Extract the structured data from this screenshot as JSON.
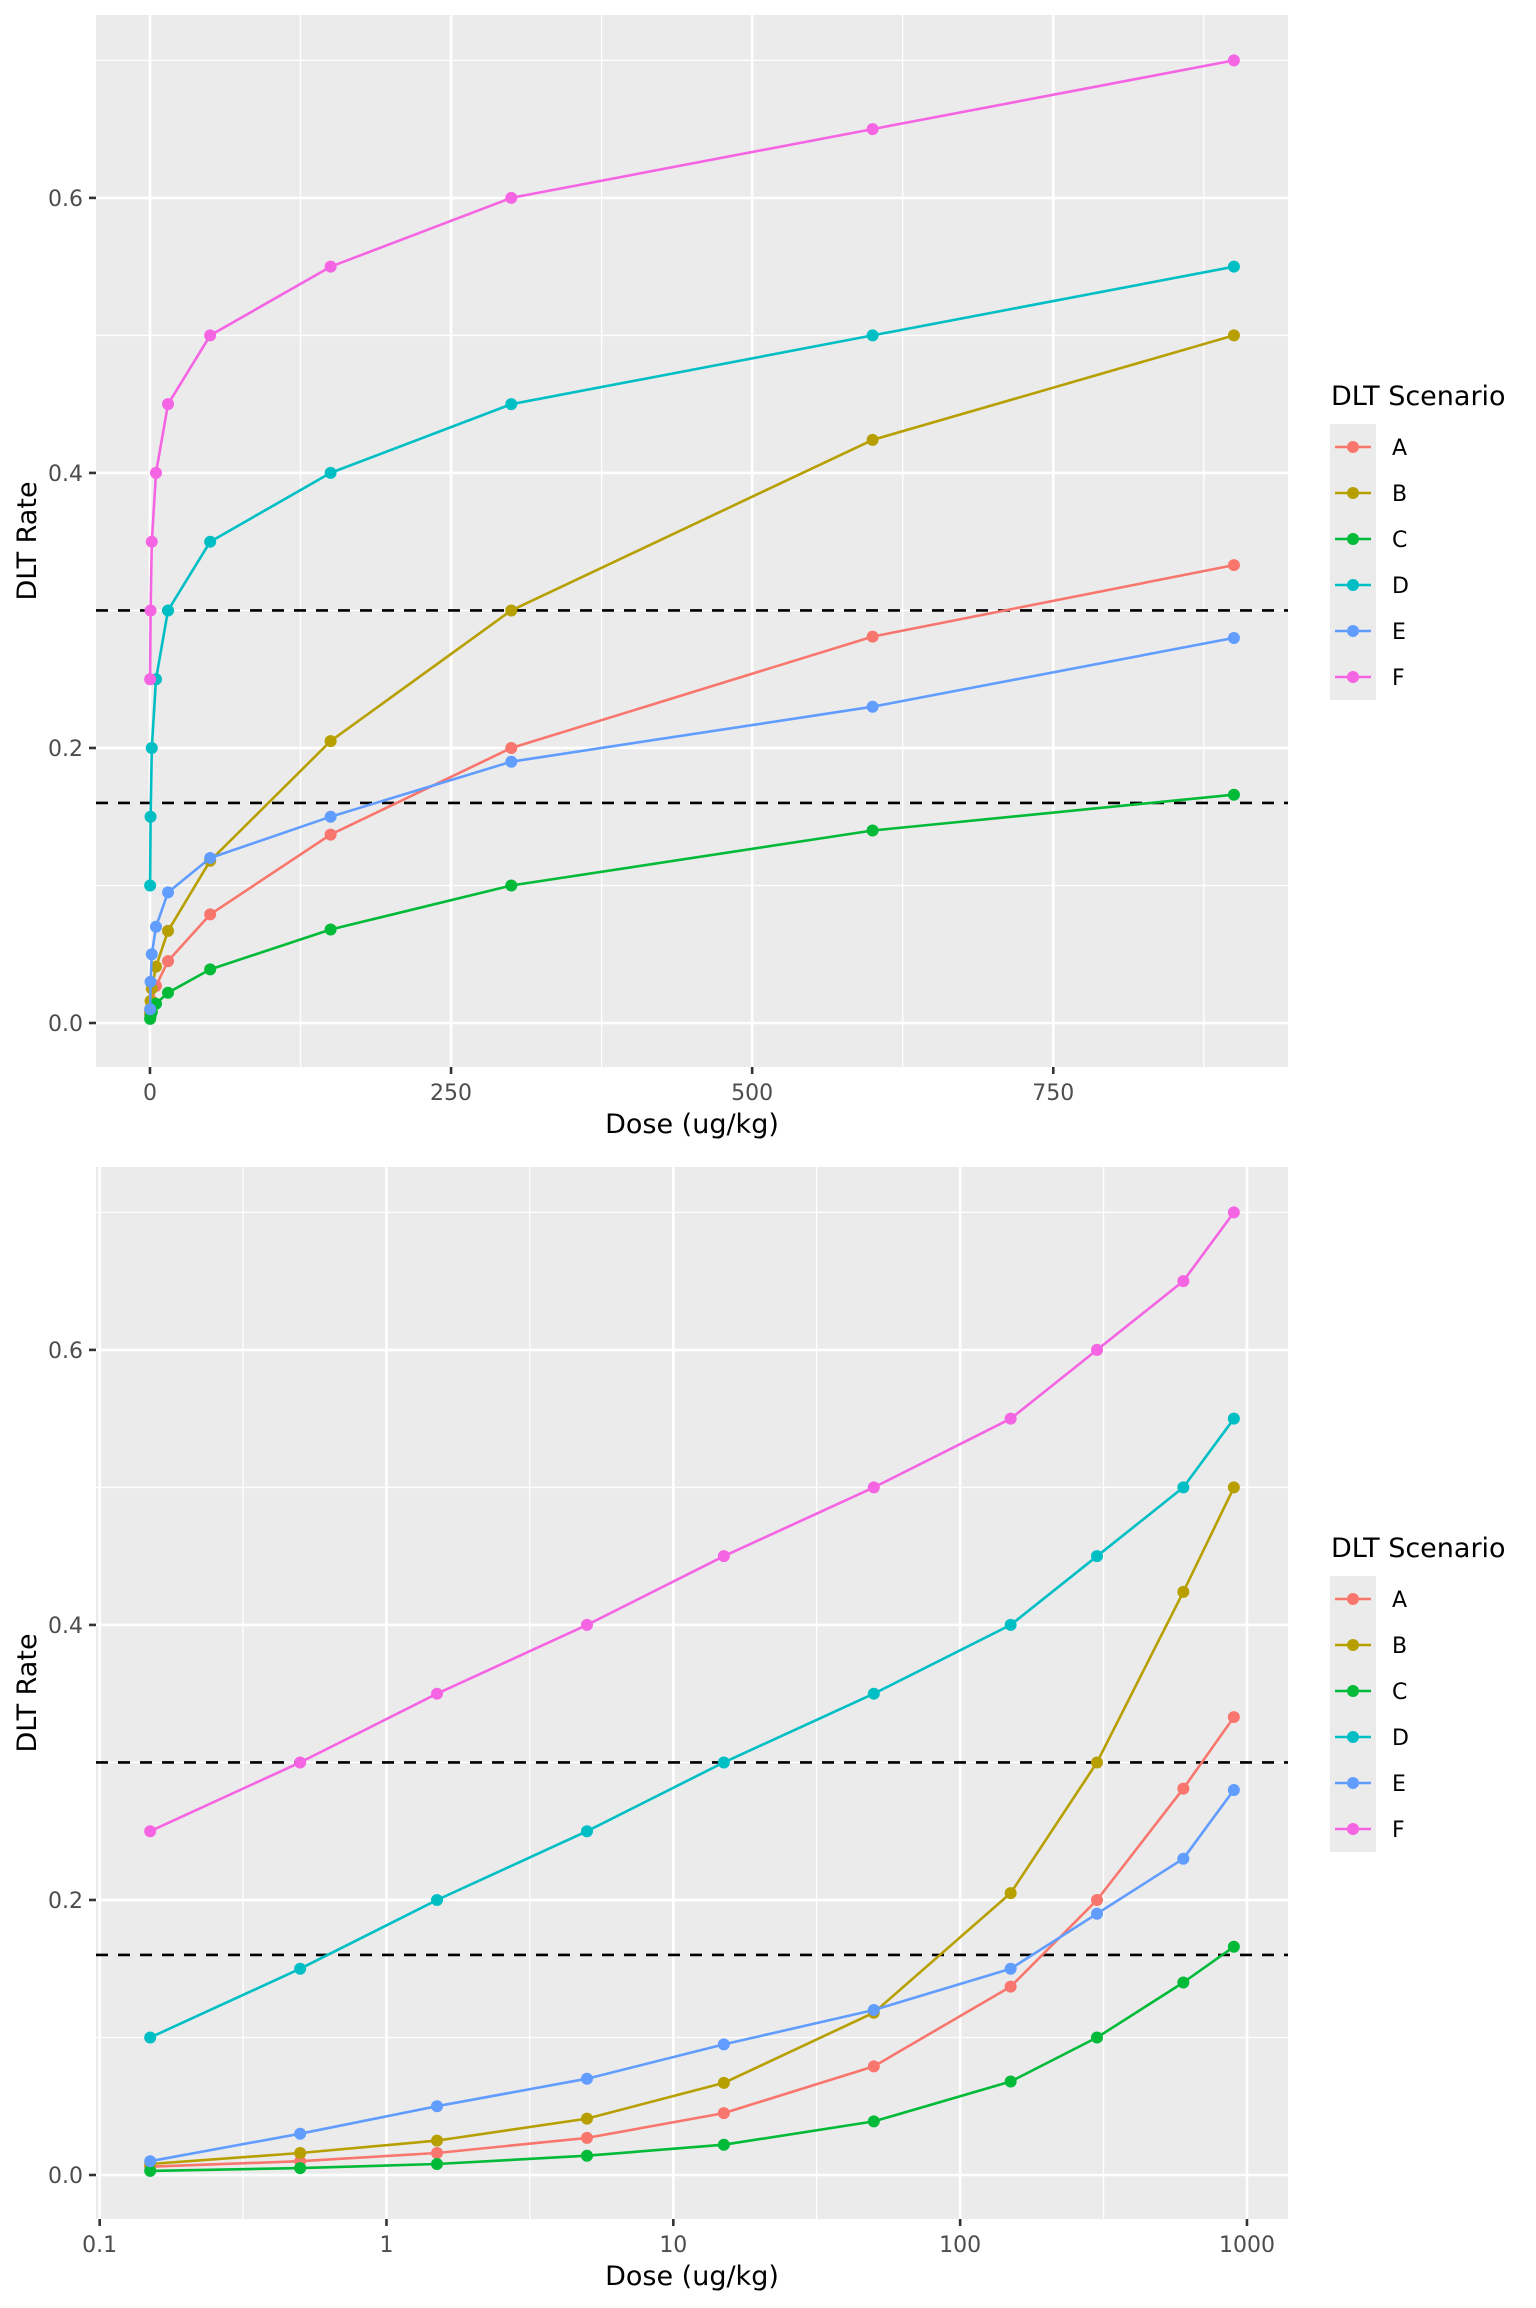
{
  "chart_data": [
    {
      "type": "line",
      "panel": "linear",
      "title": "",
      "xlabel": "Dose (ug/kg)",
      "ylabel": "DLT Rate",
      "xscale": "linear",
      "xlim": [
        -44.8,
        944.9
      ],
      "ylim": [
        -0.032,
        0.733
      ],
      "xticks": [
        0,
        250,
        500,
        750
      ],
      "xtick_labels": [
        "0",
        "250",
        "500",
        "750"
      ],
      "xminor": [
        125,
        375,
        625,
        875
      ],
      "yticks": [
        0.0,
        0.2,
        0.4,
        0.6
      ],
      "ytick_labels": [
        "0.0",
        "0.2",
        "0.4",
        "0.6"
      ],
      "yminor": [
        0.1,
        0.3,
        0.5,
        0.7
      ],
      "grid": true,
      "hlines": [
        0.3,
        0.16
      ],
      "legend": {
        "title": "DLT Scenario",
        "position": "right"
      },
      "x": [
        0.15,
        0.5,
        1.5,
        5,
        15,
        50,
        150,
        300,
        600,
        900
      ],
      "series": [
        {
          "name": "A",
          "color": "#F8766D",
          "values": [
            0.006,
            0.01,
            0.016,
            0.027,
            0.045,
            0.079,
            0.137,
            0.2,
            0.281,
            0.333
          ]
        },
        {
          "name": "B",
          "color": "#B79F00",
          "values": [
            0.008,
            0.016,
            0.025,
            0.041,
            0.067,
            0.118,
            0.205,
            0.3,
            0.424,
            0.5
          ]
        },
        {
          "name": "C",
          "color": "#00BA38",
          "values": [
            0.003,
            0.005,
            0.008,
            0.014,
            0.022,
            0.039,
            0.068,
            0.1,
            0.14,
            0.166
          ]
        },
        {
          "name": "D",
          "color": "#00BFC4",
          "values": [
            0.1,
            0.15,
            0.2,
            0.25,
            0.3,
            0.35,
            0.4,
            0.45,
            0.5,
            0.55
          ]
        },
        {
          "name": "E",
          "color": "#619CFF",
          "values": [
            0.01,
            0.03,
            0.05,
            0.07,
            0.095,
            0.12,
            0.15,
            0.19,
            0.23,
            0.28
          ]
        },
        {
          "name": "F",
          "color": "#F564E3",
          "values": [
            0.25,
            0.3,
            0.35,
            0.4,
            0.45,
            0.5,
            0.55,
            0.6,
            0.65,
            0.7
          ]
        }
      ]
    },
    {
      "type": "line",
      "panel": "log",
      "title": "",
      "xlabel": "Dose (ug/kg)",
      "ylabel": "DLT Rate",
      "xscale": "log10",
      "xlim": [
        0.0971,
        1390
      ],
      "ylim": [
        -0.032,
        0.733
      ],
      "xticks": [
        0.1,
        1,
        10,
        100,
        1000
      ],
      "xtick_labels": [
        "0.1",
        "1",
        "10",
        "100",
        "1000"
      ],
      "xminor": [
        0.316,
        3.16,
        31.6,
        316
      ],
      "yticks": [
        0.0,
        0.2,
        0.4,
        0.6
      ],
      "ytick_labels": [
        "0.0",
        "0.2",
        "0.4",
        "0.6"
      ],
      "yminor": [
        0.1,
        0.3,
        0.5,
        0.7
      ],
      "grid": true,
      "hlines": [
        0.3,
        0.16
      ],
      "legend": {
        "title": "DLT Scenario",
        "position": "right"
      },
      "x": [
        0.15,
        0.5,
        1.5,
        5,
        15,
        50,
        150,
        300,
        600,
        900
      ],
      "series": [
        {
          "name": "A",
          "color": "#F8766D",
          "values": [
            0.006,
            0.01,
            0.016,
            0.027,
            0.045,
            0.079,
            0.137,
            0.2,
            0.281,
            0.333
          ]
        },
        {
          "name": "B",
          "color": "#B79F00",
          "values": [
            0.008,
            0.016,
            0.025,
            0.041,
            0.067,
            0.118,
            0.205,
            0.3,
            0.424,
            0.5
          ]
        },
        {
          "name": "C",
          "color": "#00BA38",
          "values": [
            0.003,
            0.005,
            0.008,
            0.014,
            0.022,
            0.039,
            0.068,
            0.1,
            0.14,
            0.166
          ]
        },
        {
          "name": "D",
          "color": "#00BFC4",
          "values": [
            0.1,
            0.15,
            0.2,
            0.25,
            0.3,
            0.35,
            0.4,
            0.45,
            0.5,
            0.55
          ]
        },
        {
          "name": "E",
          "color": "#619CFF",
          "values": [
            0.01,
            0.03,
            0.05,
            0.07,
            0.095,
            0.12,
            0.15,
            0.19,
            0.23,
            0.28
          ]
        },
        {
          "name": "F",
          "color": "#F564E3",
          "values": [
            0.25,
            0.3,
            0.35,
            0.4,
            0.45,
            0.5,
            0.55,
            0.6,
            0.65,
            0.7
          ]
        }
      ]
    }
  ],
  "colors": {
    "panel_background": "#EBEBEB",
    "gridline": "#FFFFFF",
    "reference_line": "#000000",
    "tick_text": "#4D4D4D"
  }
}
